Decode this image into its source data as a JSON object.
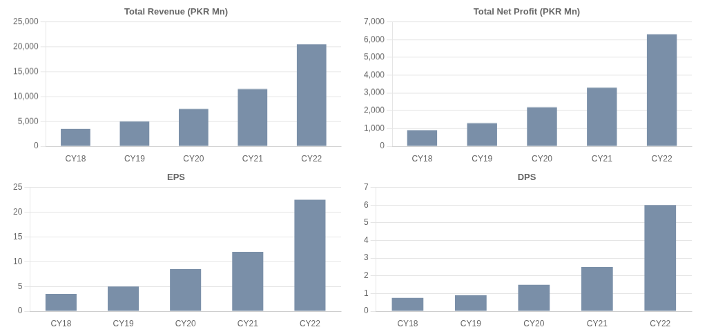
{
  "chart_data": [
    {
      "type": "bar",
      "title": "Total Revenue (PKR Mn)",
      "categories": [
        "CY18",
        "CY19",
        "CY20",
        "CY21",
        "CY22"
      ],
      "values": [
        3500,
        5000,
        7500,
        11500,
        20500
      ],
      "color": "#7a8fa8",
      "ylim": [
        0,
        25000
      ],
      "yticks": [
        0,
        {
          "value": 5000,
          "label": "5,000"
        },
        {
          "value": 10000,
          "label": "10,000"
        },
        {
          "value": 15000,
          "label": "15,000"
        },
        {
          "value": 20000,
          "label": "20,000"
        },
        {
          "value": 25000,
          "label": "25,000"
        }
      ],
      "grid": true
    },
    {
      "type": "bar",
      "title": "Total Net Profit (PKR Mn)",
      "categories": [
        "CY18",
        "CY19",
        "CY20",
        "CY21",
        "CY22"
      ],
      "values": [
        900,
        1300,
        2200,
        3300,
        6300
      ],
      "color": "#7a8fa8",
      "ylim": [
        0,
        7000
      ],
      "yticks": [
        0,
        {
          "value": 1000,
          "label": "1,000"
        },
        {
          "value": 2000,
          "label": "2,000"
        },
        {
          "value": 3000,
          "label": "3,000"
        },
        {
          "value": 4000,
          "label": "4,000"
        },
        {
          "value": 5000,
          "label": "5,000"
        },
        {
          "value": 6000,
          "label": "6,000"
        },
        {
          "value": 7000,
          "label": "7,000"
        }
      ],
      "grid": true
    },
    {
      "type": "bar",
      "title": "EPS",
      "categories": [
        "CY18",
        "CY19",
        "CY20",
        "CY21",
        "CY22"
      ],
      "values": [
        3.5,
        5.0,
        8.5,
        12.0,
        22.5
      ],
      "color": "#7a8fa8",
      "ylim": [
        0,
        25
      ],
      "yticks": [
        0,
        5,
        10,
        15,
        20,
        25
      ],
      "grid": true
    },
    {
      "type": "bar",
      "title": "DPS",
      "categories": [
        "CY18",
        "CY19",
        "CY20",
        "CY21",
        "CY22"
      ],
      "values": [
        0.75,
        0.9,
        1.5,
        2.5,
        6.0
      ],
      "color": "#7a8fa8",
      "ylim": [
        0,
        7
      ],
      "yticks": [
        0,
        1,
        2,
        3,
        4,
        5,
        6,
        7
      ],
      "grid": true
    }
  ]
}
